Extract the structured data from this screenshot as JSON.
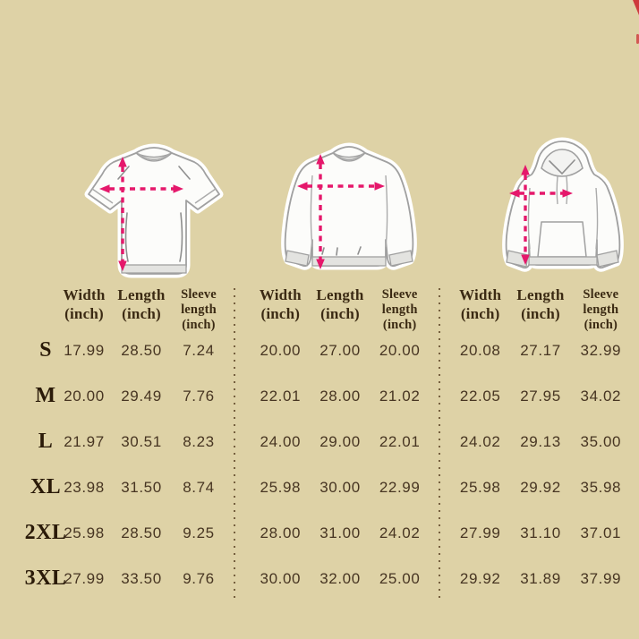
{
  "title": "apparel size chart (inches)",
  "colors": {
    "background": "#ded2a6",
    "accent_pink": "#e5186b",
    "corner_red": "#ce3a3d",
    "text_dark": "#3b2a13"
  },
  "column_headers": [
    {
      "lines": [
        "Width",
        "(inch)"
      ]
    },
    {
      "lines": [
        "Length",
        "(inch)"
      ]
    },
    {
      "lines": [
        "Sleeve",
        "length",
        "(inch)"
      ]
    }
  ],
  "sizes": [
    "S",
    "M",
    "L",
    "XL",
    "2XL",
    "3XL"
  ],
  "garments": [
    {
      "name": "t-shirt"
    },
    {
      "name": "sweatshirt"
    },
    {
      "name": "hoodie"
    }
  ],
  "chart_data": [
    {
      "type": "table",
      "garment": "t-shirt",
      "columns": [
        "Width (inch)",
        "Length (inch)",
        "Sleeve length (inch)"
      ],
      "row_labels": [
        "S",
        "M",
        "L",
        "XL",
        "2XL",
        "3XL"
      ],
      "rows": [
        [
          "17.99",
          "28.50",
          "7.24"
        ],
        [
          "20.00",
          "29.49",
          "7.76"
        ],
        [
          "21.97",
          "30.51",
          "8.23"
        ],
        [
          "23.98",
          "31.50",
          "8.74"
        ],
        [
          "25.98",
          "28.50",
          "9.25"
        ],
        [
          "27.99",
          "33.50",
          "9.76"
        ]
      ]
    },
    {
      "type": "table",
      "garment": "sweatshirt",
      "columns": [
        "Width (inch)",
        "Length (inch)",
        "Sleeve length (inch)"
      ],
      "row_labels": [
        "S",
        "M",
        "L",
        "XL",
        "2XL",
        "3XL"
      ],
      "rows": [
        [
          "20.00",
          "27.00",
          "20.00"
        ],
        [
          "22.01",
          "28.00",
          "21.02"
        ],
        [
          "24.00",
          "29.00",
          "22.01"
        ],
        [
          "25.98",
          "30.00",
          "22.99"
        ],
        [
          "28.00",
          "31.00",
          "24.02"
        ],
        [
          "30.00",
          "32.00",
          "25.00"
        ]
      ]
    },
    {
      "type": "table",
      "garment": "hoodie",
      "columns": [
        "Width (inch)",
        "Length (inch)",
        "Sleeve length (inch)"
      ],
      "row_labels": [
        "S",
        "M",
        "L",
        "XL",
        "2XL",
        "3XL"
      ],
      "rows": [
        [
          "20.08",
          "27.17",
          "32.99"
        ],
        [
          "22.05",
          "27.95",
          "34.02"
        ],
        [
          "24.02",
          "29.13",
          "35.00"
        ],
        [
          "25.98",
          "29.92",
          "35.98"
        ],
        [
          "27.99",
          "31.10",
          "37.01"
        ],
        [
          "29.92",
          "31.89",
          "37.99"
        ]
      ]
    }
  ]
}
